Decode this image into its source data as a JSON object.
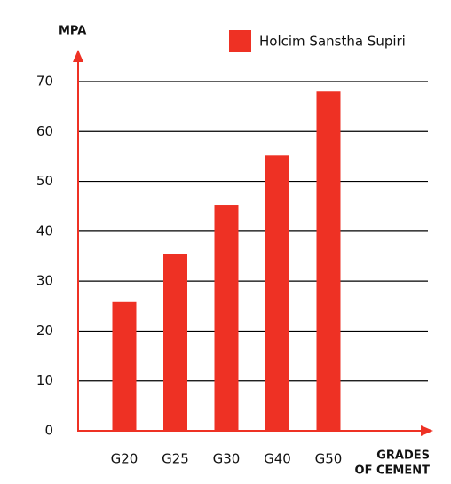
{
  "chart_data": {
    "type": "bar",
    "y_label": "MPA",
    "x_label": [
      "GRADES",
      "OF CEMENT"
    ],
    "categories": [
      "G20",
      "G25",
      "G30",
      "G40",
      "G50"
    ],
    "series": [
      {
        "name": "Holcim Sanstha Supiri",
        "color": "#ee3124",
        "values": [
          25.8,
          35.5,
          45.3,
          55.2,
          68
        ]
      }
    ],
    "ylim": [
      0,
      70
    ],
    "yticks": [
      0,
      10,
      20,
      30,
      40,
      50,
      60,
      70
    ],
    "grid": true,
    "legend": "top-right"
  }
}
